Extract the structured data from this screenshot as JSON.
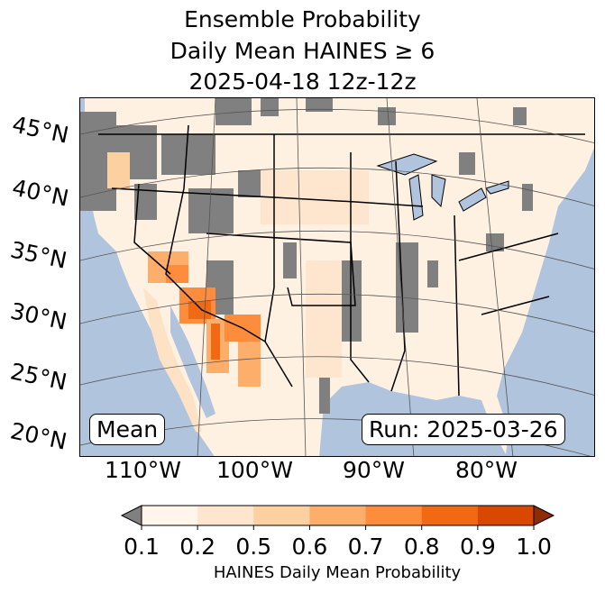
{
  "title": {
    "line1": "Ensemble Probability",
    "line2": "Daily Mean HAINES ≥ 6",
    "line3": "2025-04-18 12z-12z"
  },
  "map": {
    "lat_labels": [
      "45°N",
      "40°N",
      "35°N",
      "30°N",
      "25°N",
      "20°N"
    ],
    "lon_labels": [
      "110°W",
      "100°W",
      "90°W",
      "80°W"
    ],
    "mean_label": "Mean",
    "run_label": "Run: 2025-03-26",
    "colors": {
      "ocean": "#b0c4de",
      "missing": "#808080",
      "border": "#000000"
    }
  },
  "colorbar": {
    "ticks": [
      "0.1",
      "0.2",
      "0.5",
      "0.6",
      "0.7",
      "0.8",
      "0.9",
      "1.0"
    ],
    "colors": [
      "#fff5eb",
      "#fee6ce",
      "#fdd0a2",
      "#fdae6b",
      "#fd8d3c",
      "#f16913",
      "#d94801"
    ],
    "under_color": "#808080",
    "over_color": "#8c2d04",
    "label": "HAINES Daily Mean Probability"
  }
}
